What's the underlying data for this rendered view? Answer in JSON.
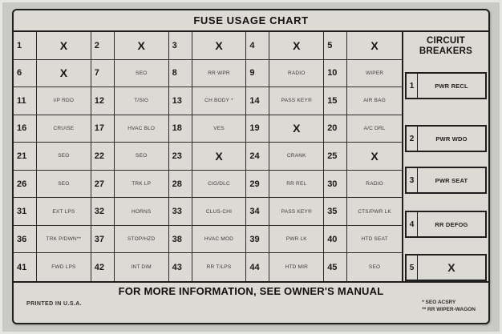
{
  "title": "FUSE USAGE CHART",
  "colors": {
    "card_background": "#dcdad4",
    "line": "#1e1e1e",
    "text": "#1a1a1a"
  },
  "fuses": [
    {
      "num": "1",
      "label": "X"
    },
    {
      "num": "2",
      "label": "X"
    },
    {
      "num": "3",
      "label": "X"
    },
    {
      "num": "4",
      "label": "X"
    },
    {
      "num": "5",
      "label": "X"
    },
    {
      "num": "6",
      "label": "X"
    },
    {
      "num": "7",
      "label": "SEO"
    },
    {
      "num": "8",
      "label": "RR WPR"
    },
    {
      "num": "9",
      "label": "RADIO"
    },
    {
      "num": "10",
      "label": "WIPER"
    },
    {
      "num": "11",
      "label": "I/P RDO"
    },
    {
      "num": "12",
      "label": "T/SIG"
    },
    {
      "num": "13",
      "label": "CH BODY *"
    },
    {
      "num": "14",
      "label": "PASS KEY®"
    },
    {
      "num": "15",
      "label": "AIR BAG"
    },
    {
      "num": "16",
      "label": "CRUISE"
    },
    {
      "num": "17",
      "label": "HVAC BLO"
    },
    {
      "num": "18",
      "label": "VES"
    },
    {
      "num": "19",
      "label": "X"
    },
    {
      "num": "20",
      "label": "A/C DRL"
    },
    {
      "num": "21",
      "label": "SEO"
    },
    {
      "num": "22",
      "label": "SEO"
    },
    {
      "num": "23",
      "label": "X"
    },
    {
      "num": "24",
      "label": "CRANK"
    },
    {
      "num": "25",
      "label": "X"
    },
    {
      "num": "26",
      "label": "SEO"
    },
    {
      "num": "27",
      "label": "TRK LP"
    },
    {
      "num": "28",
      "label": "CIG/DLC"
    },
    {
      "num": "29",
      "label": "RR REL"
    },
    {
      "num": "30",
      "label": "RADIO"
    },
    {
      "num": "31",
      "label": "EXT LPS"
    },
    {
      "num": "32",
      "label": "HORNS"
    },
    {
      "num": "33",
      "label": "CLUS-CHI"
    },
    {
      "num": "34",
      "label": "PASS KEY®"
    },
    {
      "num": "35",
      "label": "CTS/PWR LK"
    },
    {
      "num": "36",
      "label": "TRK P/DWN**"
    },
    {
      "num": "37",
      "label": "STOP/HZD"
    },
    {
      "num": "38",
      "label": "HVAC MOD"
    },
    {
      "num": "39",
      "label": "PWR LK"
    },
    {
      "num": "40",
      "label": "HTD SEAT"
    },
    {
      "num": "41",
      "label": "FWD LPS"
    },
    {
      "num": "42",
      "label": "INT DIM"
    },
    {
      "num": "43",
      "label": "RR T/LPS"
    },
    {
      "num": "44",
      "label": "HTD MIR"
    },
    {
      "num": "45",
      "label": "SEO"
    }
  ],
  "circuit_breakers": {
    "header": "CIRCUIT BREAKERS",
    "items": [
      {
        "num": "1",
        "label": "PWR RECL"
      },
      {
        "num": "2",
        "label": "PWR WDO"
      },
      {
        "num": "3",
        "label": "PWR SEAT"
      },
      {
        "num": "4",
        "label": "RR DEFOG"
      },
      {
        "num": "5",
        "label": "X"
      }
    ]
  },
  "footer": {
    "message": "FOR MORE INFORMATION, SEE OWNER'S MANUAL",
    "printed": "PRINTED IN U.S.A.",
    "footnotes": [
      "* SEO ACSRY",
      "** RR WIPER-WAGON"
    ]
  }
}
